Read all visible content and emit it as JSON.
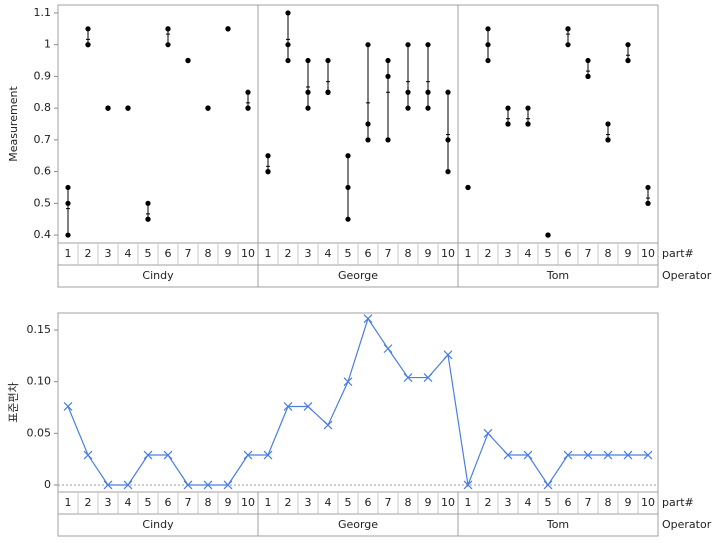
{
  "chart_data": [
    {
      "type": "variability",
      "y_label": "Measurement",
      "x_labels": [
        "part#",
        "Operator"
      ],
      "ylim": [
        0.375,
        1.125
      ],
      "yticks": [
        0.4,
        0.5,
        0.6,
        0.7,
        0.8,
        0.9,
        1,
        1.1
      ],
      "color": "#000000",
      "groups": [
        {
          "name": "Cindy",
          "categories": [
            "1",
            "2",
            "3",
            "4",
            "5",
            "6",
            "7",
            "8",
            "9",
            "10"
          ],
          "values": [
            [
              0.4,
              0.5,
              0.55
            ],
            [
              1.0,
              1.05,
              1.0
            ],
            [
              0.8,
              0.8,
              0.8
            ],
            [
              0.8,
              0.8,
              0.8
            ],
            [
              0.5,
              0.45,
              0.45
            ],
            [
              1.05,
              1.0,
              1.05
            ],
            [
              0.95,
              0.95,
              0.95
            ],
            [
              0.8,
              0.8,
              0.8
            ],
            [
              1.05,
              1.05,
              1.05
            ],
            [
              0.85,
              0.8,
              0.8
            ]
          ]
        },
        {
          "name": "George",
          "categories": [
            "1",
            "2",
            "3",
            "4",
            "5",
            "6",
            "7",
            "8",
            "9",
            "10"
          ],
          "values": [
            [
              0.65,
              0.6,
              0.6
            ],
            [
              1.1,
              1.0,
              0.95
            ],
            [
              0.95,
              0.85,
              0.8
            ],
            [
              0.95,
              0.85,
              0.85
            ],
            [
              0.65,
              0.55,
              0.45
            ],
            [
              1.0,
              0.75,
              0.7
            ],
            [
              0.95,
              0.9,
              0.7
            ],
            [
              1.0,
              0.85,
              0.8
            ],
            [
              1.0,
              0.85,
              0.8
            ],
            [
              0.85,
              0.7,
              0.6
            ]
          ]
        },
        {
          "name": "Tom",
          "categories": [
            "1",
            "2",
            "3",
            "4",
            "5",
            "6",
            "7",
            "8",
            "9",
            "10"
          ],
          "values": [
            [
              0.55,
              0.55,
              0.55
            ],
            [
              1.05,
              1.0,
              0.95
            ],
            [
              0.8,
              0.75,
              0.75
            ],
            [
              0.8,
              0.75,
              0.75
            ],
            [
              0.4,
              0.4,
              0.4
            ],
            [
              1.05,
              1.0,
              1.05
            ],
            [
              0.95,
              0.9,
              0.9
            ],
            [
              0.75,
              0.7,
              0.7
            ],
            [
              1.0,
              0.95,
              0.95
            ],
            [
              0.55,
              0.5,
              0.5
            ]
          ]
        }
      ]
    },
    {
      "type": "line",
      "y_label": "표준편차",
      "x_labels": [
        "part#",
        "Operator"
      ],
      "ylim": [
        -0.0068,
        0.1665
      ],
      "yticks": [
        0,
        {
          "value": 0.05,
          "label": "0.05"
        },
        {
          "value": 0.1,
          "label": "0.10"
        },
        {
          "value": 0.15,
          "label": "0.15"
        }
      ],
      "color": "#4a7fe0",
      "groups": [
        {
          "name": "Cindy",
          "categories": [
            "1",
            "2",
            "3",
            "4",
            "5",
            "6",
            "7",
            "8",
            "9",
            "10"
          ],
          "values": [
            0.076,
            0.029,
            0,
            0,
            0.029,
            0.029,
            0,
            0,
            0,
            0.029
          ]
        },
        {
          "name": "George",
          "categories": [
            "1",
            "2",
            "3",
            "4",
            "5",
            "6",
            "7",
            "8",
            "9",
            "10"
          ],
          "values": [
            0.029,
            0.076,
            0.076,
            0.058,
            0.1,
            0.161,
            0.132,
            0.104,
            0.104,
            0.126
          ]
        },
        {
          "name": "Tom",
          "categories": [
            "1",
            "2",
            "3",
            "4",
            "5",
            "6",
            "7",
            "8",
            "9",
            "10"
          ],
          "values": [
            0,
            0.05,
            0.029,
            0.029,
            0,
            0.029,
            0.029,
            0.029,
            0.029,
            0.029
          ]
        }
      ]
    }
  ]
}
